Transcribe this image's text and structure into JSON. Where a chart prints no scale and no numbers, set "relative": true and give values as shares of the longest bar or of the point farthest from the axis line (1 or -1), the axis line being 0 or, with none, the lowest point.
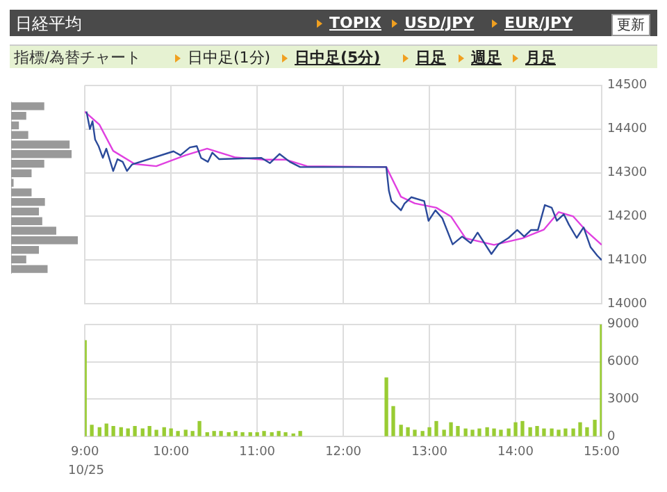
{
  "chart_data": [
    {
      "type": "line",
      "series": [
        {
          "color": "#2b4a9a",
          "x": [
            9.02,
            9.06,
            9.09,
            9.12,
            9.16,
            9.21,
            9.25,
            9.33,
            9.38,
            9.44,
            9.49,
            9.55,
            10.03,
            10.11,
            10.22,
            10.3,
            10.35,
            10.43,
            10.48,
            10.56,
            11.05,
            11.15,
            11.26,
            11.38,
            11.5,
            12.0,
            12.5,
            12.53,
            12.56,
            12.67,
            12.71,
            12.79,
            12.94,
            12.99,
            13.07,
            13.15,
            13.27,
            13.38,
            13.48,
            13.56,
            13.72,
            13.8,
            13.92,
            14.02,
            14.1,
            14.18,
            14.26,
            14.34,
            14.42,
            14.48,
            14.56,
            14.62,
            14.71,
            14.79,
            14.87,
            14.95,
            15.0
          ],
          "values": [
            14440,
            14400,
            14418,
            14376,
            14361,
            14334,
            14355,
            14304,
            14331,
            14325,
            14304,
            14319,
            14349,
            14340,
            14358,
            14361,
            14334,
            14325,
            14346,
            14331,
            14334,
            14322,
            14343,
            14325,
            14313,
            14313,
            14313,
            14259,
            14235,
            14214,
            14229,
            14244,
            14235,
            14190,
            14214,
            14196,
            14136,
            14154,
            14139,
            14163,
            14114,
            14136,
            14151,
            14169,
            14154,
            14169,
            14169,
            14226,
            14220,
            14190,
            14205,
            14181,
            14151,
            14175,
            14130,
            14110,
            14100
          ]
        },
        {
          "color": "#e040e0",
          "x": [
            9.0,
            9.17,
            9.33,
            9.58,
            9.83,
            10.17,
            10.42,
            10.75,
            11.08,
            11.33,
            11.58,
            12.5,
            12.67,
            12.83,
            13.08,
            13.25,
            13.42,
            13.75,
            14.08,
            14.33,
            14.5,
            14.67,
            14.83,
            15.0
          ],
          "values": [
            14440,
            14410,
            14350,
            14320,
            14315,
            14340,
            14355,
            14335,
            14330,
            14330,
            14315,
            14313,
            14245,
            14230,
            14220,
            14200,
            14150,
            14135,
            14150,
            14170,
            14210,
            14200,
            14165,
            14135
          ]
        }
      ],
      "xlim": [
        9,
        15
      ],
      "xticks": [
        9,
        10,
        11,
        12,
        13,
        14,
        15
      ],
      "ylim": [
        14000,
        14500
      ],
      "yticks": [
        14000,
        14100,
        14200,
        14300,
        14400,
        14500
      ],
      "grid": true,
      "tick_labels": "y"
    },
    {
      "type": "bar",
      "annotations": [
        "10/25"
      ],
      "color": "#99cc33",
      "x": [
        9.0,
        9.08,
        9.17,
        9.25,
        9.33,
        9.42,
        9.5,
        9.58,
        9.67,
        9.75,
        9.83,
        9.92,
        10.0,
        10.08,
        10.17,
        10.25,
        10.33,
        10.42,
        10.5,
        10.58,
        10.67,
        10.75,
        10.83,
        10.92,
        11.0,
        11.08,
        11.17,
        11.25,
        11.33,
        11.42,
        11.5,
        12.5,
        12.58,
        12.67,
        12.75,
        12.83,
        12.92,
        13.0,
        13.08,
        13.17,
        13.25,
        13.33,
        13.42,
        13.5,
        13.58,
        13.67,
        13.75,
        13.83,
        13.92,
        14.0,
        14.08,
        14.17,
        14.25,
        14.33,
        14.42,
        14.5,
        14.58,
        14.67,
        14.75,
        14.83,
        14.92,
        15.0
      ],
      "values": [
        7700,
        900,
        700,
        1000,
        800,
        700,
        600,
        800,
        600,
        800,
        500,
        700,
        600,
        400,
        500,
        400,
        1200,
        300,
        400,
        400,
        300,
        400,
        300,
        300,
        300,
        400,
        300,
        400,
        300,
        200,
        400,
        4700,
        2400,
        900,
        700,
        500,
        400,
        700,
        1200,
        500,
        1100,
        800,
        600,
        500,
        600,
        700,
        600,
        500,
        600,
        1100,
        1200,
        700,
        800,
        600,
        600,
        500,
        600,
        600,
        1100,
        700,
        1300,
        9000
      ],
      "xlim": [
        9,
        15
      ],
      "xticks": [
        {
          "value": 9,
          "label": "9:00"
        },
        {
          "value": 10,
          "label": "10:00"
        },
        {
          "value": 11,
          "label": "11:00"
        },
        {
          "value": 12,
          "label": "12:00"
        },
        {
          "value": 13,
          "label": "13:00"
        },
        {
          "value": 14,
          "label": "14:00"
        },
        {
          "value": 15,
          "label": "15:00"
        }
      ],
      "ylim": [
        0,
        9000
      ],
      "yticks": [
        0,
        3000,
        6000,
        9000
      ],
      "grid": true
    },
    {
      "type": "bar",
      "orientation": "horizontal",
      "relative": true,
      "color": "#999999",
      "categories": [
        null,
        null,
        null,
        null,
        null,
        null,
        null,
        null,
        null,
        null,
        null,
        null,
        null,
        null,
        null,
        null,
        null,
        null
      ],
      "values": [
        0.49,
        0.22,
        0.11,
        0.25,
        0.87,
        0.9,
        0.49,
        0.3,
        0.03,
        0.3,
        0.5,
        0.41,
        0.46,
        0.67,
        1,
        0.41,
        0.22,
        0.54
      ]
    },
    {
      "type": "other",
      "title": "日経平均",
      "annotations": [
        "TOPIX",
        "USD/JPY",
        "EUR/JPY",
        "更新",
        "指標/為替チャート",
        "日中足(1分)",
        "日中足(5分)",
        "日足",
        "週足",
        "月足"
      ]
    }
  ]
}
